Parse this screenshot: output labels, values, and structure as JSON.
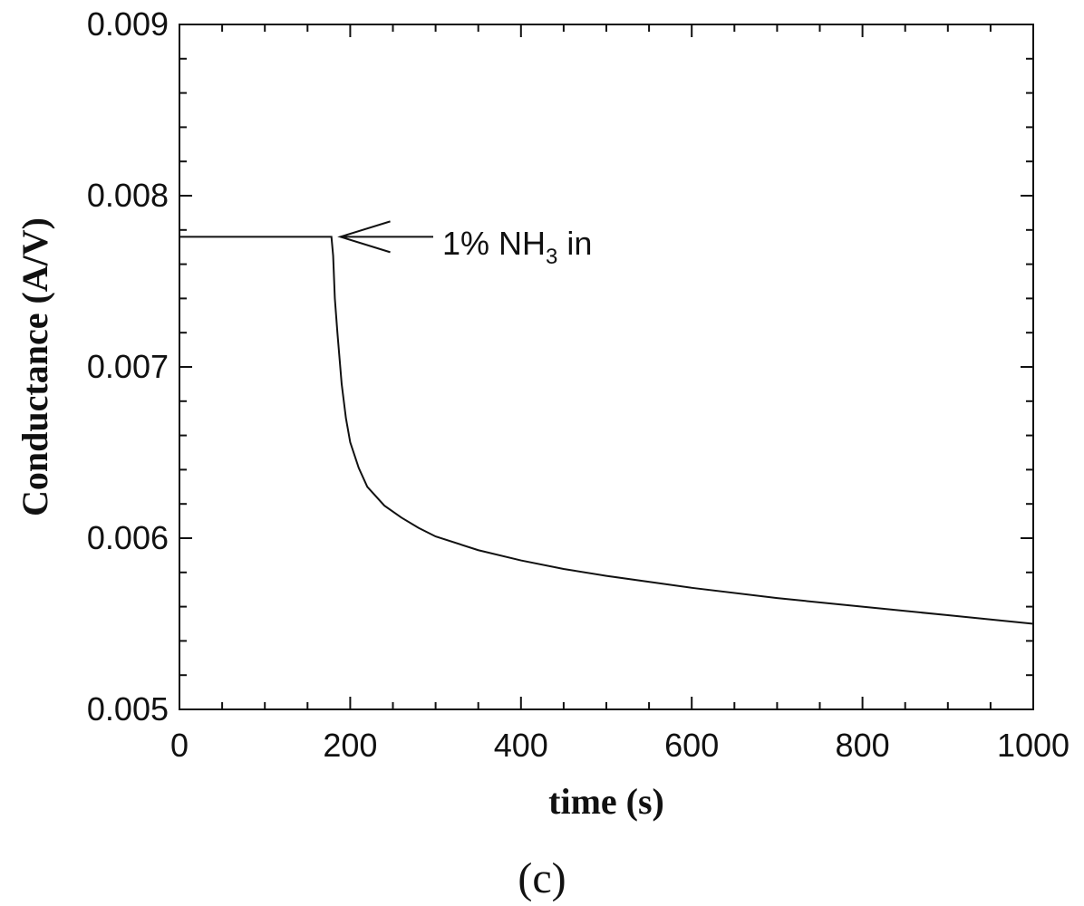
{
  "chart_data": {
    "type": "line",
    "xlabel": "time (s)",
    "ylabel": "Conductance (A/V)",
    "xlim": [
      0,
      1000
    ],
    "ylim": [
      0.005,
      0.009
    ],
    "x_ticks": [
      0,
      200,
      400,
      600,
      800,
      1000
    ],
    "y_ticks": [
      0.005,
      0.006,
      0.007,
      0.008,
      0.009
    ],
    "x_tick_labels": [
      "0",
      "200",
      "400",
      "600",
      "800",
      "1000"
    ],
    "y_tick_labels": [
      "0.005",
      "0.006",
      "0.007",
      "0.008",
      "0.009"
    ],
    "grid": false,
    "annotation": {
      "text": "1% NH",
      "subscript": "3",
      "suffix": " in",
      "x": 180,
      "y": 0.00776
    },
    "panel_label": "(c)",
    "series": [
      {
        "x": [
          0,
          100,
          178,
          180,
          182,
          185,
          190,
          195,
          200,
          210,
          220,
          240,
          260,
          280,
          300,
          350,
          400,
          450,
          500,
          600,
          700,
          800,
          900,
          1000
        ],
        "y": [
          0.00776,
          0.00776,
          0.00776,
          0.00765,
          0.0074,
          0.0072,
          0.0069,
          0.0067,
          0.00656,
          0.00641,
          0.0063,
          0.00619,
          0.00612,
          0.00606,
          0.00601,
          0.00593,
          0.00587,
          0.00582,
          0.00578,
          0.00571,
          0.00565,
          0.0056,
          0.00555,
          0.0055
        ]
      }
    ]
  }
}
